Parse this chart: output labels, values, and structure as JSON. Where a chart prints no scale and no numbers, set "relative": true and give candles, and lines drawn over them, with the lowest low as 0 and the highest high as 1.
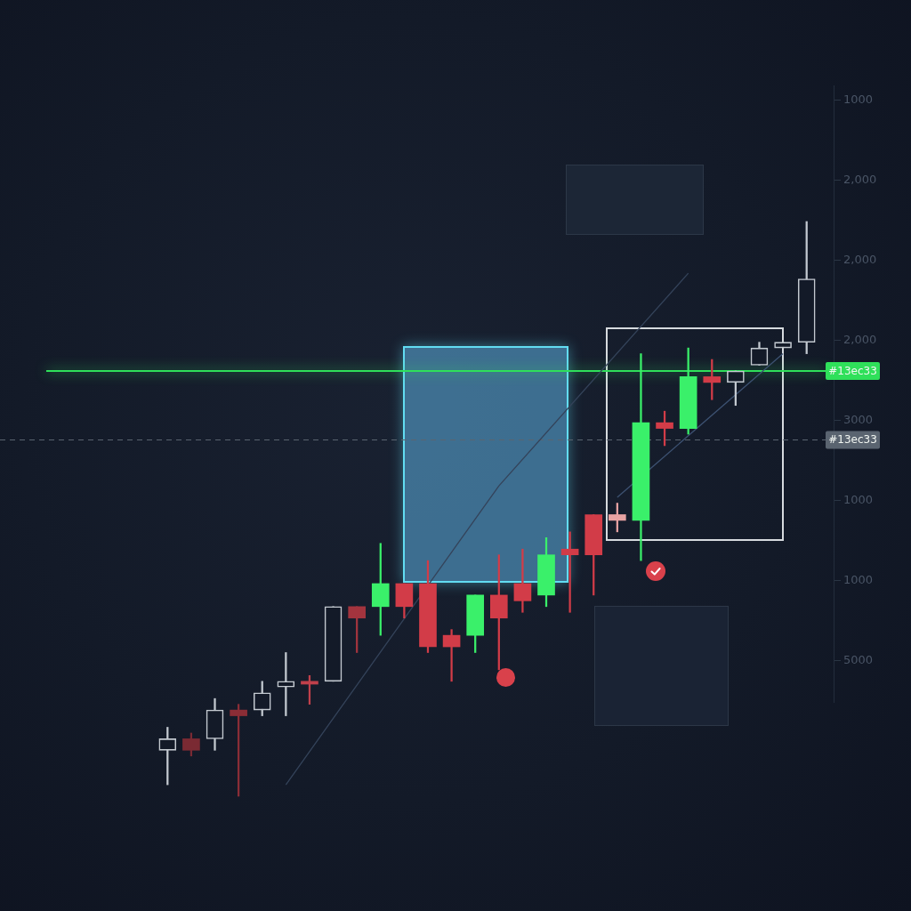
{
  "chart_data": {
    "type": "candlestick",
    "relative": true,
    "categories": [
      null,
      null,
      null,
      null,
      null,
      null,
      null,
      null,
      null,
      null,
      null,
      null,
      null,
      null,
      null,
      null,
      null,
      null,
      null,
      null,
      null,
      null,
      null,
      null,
      null,
      null,
      null,
      null
    ],
    "ohlc": [
      [
        0.08,
        0.12,
        0.02,
        0.1
      ],
      [
        0.1,
        0.11,
        0.07,
        0.08
      ],
      [
        0.1,
        0.17,
        0.08,
        0.15
      ],
      [
        0.15,
        0.16,
        0,
        0.14
      ],
      [
        0.15,
        0.2,
        0.14,
        0.18
      ],
      [
        0.19,
        0.25,
        0.14,
        0.2
      ],
      [
        0.2,
        0.21,
        0.16,
        0.195
      ],
      [
        0.2,
        0.33,
        0.2,
        0.33
      ],
      [
        0.33,
        0.33,
        0.25,
        0.31
      ],
      [
        0.33,
        0.44,
        0.28,
        0.37
      ],
      [
        0.37,
        0.37,
        0.31,
        0.33
      ],
      [
        0.37,
        0.41,
        0.25,
        0.26
      ],
      [
        0.28,
        0.29,
        0.2,
        0.26
      ],
      [
        0.28,
        0.35,
        0.25,
        0.35
      ],
      [
        0.35,
        0.42,
        0.22,
        0.31
      ],
      [
        0.37,
        0.43,
        0.32,
        0.34
      ],
      [
        0.35,
        0.45,
        0.33,
        0.42
      ],
      [
        0.43,
        0.46,
        0.32,
        0.42
      ],
      [
        0.49,
        0.49,
        0.35,
        0.42
      ],
      [
        0.49,
        0.51,
        0.46,
        0.48
      ],
      [
        0.48,
        0.77,
        0.41,
        0.65
      ],
      [
        0.65,
        0.67,
        0.61,
        0.64
      ],
      [
        0.64,
        0.78,
        0.63,
        0.73
      ],
      [
        0.73,
        0.76,
        0.69,
        0.72
      ],
      [
        0.72,
        0.74,
        0.68,
        0.74
      ],
      [
        0.75,
        0.79,
        0.75,
        0.78
      ],
      [
        0.78,
        0.79,
        0.78,
        0.79
      ],
      [
        0.79,
        1,
        0.77,
        0.9
      ]
    ],
    "colors": [
      "#c3c9d0",
      "#7a2a33",
      "#c3c9d0",
      "#8a2d36",
      "#c3c9d0",
      "#c3c9d0",
      "#c0404b",
      "#c3c9d0",
      "#a3343e",
      "#3af06a",
      "#d23c48",
      "#d23c48",
      "#d23c48",
      "#3af06a",
      "#d23c48",
      "#d23c48",
      "#3af06a",
      "#d23c48",
      "#d23c48",
      "#e8a3a3",
      "#3af06a",
      "#d23c48",
      "#3af06a",
      "#d23c48",
      "#c3c9d0",
      "#c3c9d0",
      "#c3c9d0",
      "#c3c9d0"
    ],
    "series": [
      {
        "type": "line",
        "color": "#34435a",
        "values": [
          null,
          null,
          null,
          null,
          null,
          0.02,
          null,
          null,
          null,
          null,
          null,
          null,
          null,
          null,
          0.54,
          null,
          null,
          null,
          null,
          null,
          null,
          null,
          0.91,
          null,
          null,
          null,
          null,
          null
        ]
      },
      {
        "type": "line",
        "color": "#3d5272",
        "values": [
          null,
          null,
          null,
          null,
          null,
          null,
          null,
          null,
          null,
          null,
          null,
          null,
          null,
          null,
          null,
          null,
          null,
          null,
          null,
          0.52,
          null,
          null,
          null,
          null,
          null,
          null,
          0.77,
          null
        ]
      }
    ],
    "ref_lines": [
      {
        "axis": "y",
        "value": 0.74,
        "label": "#13ec33",
        "color": "#2fe05a"
      },
      {
        "axis": "y",
        "value": 0.62,
        "label": "#13ec33",
        "color": "#5a6470",
        "line_style": "dashed"
      }
    ],
    "annotations": [
      "1000",
      "2,000",
      "2,000",
      "2,000",
      "3000",
      "1000",
      "1000",
      "5000"
    ]
  }
}
